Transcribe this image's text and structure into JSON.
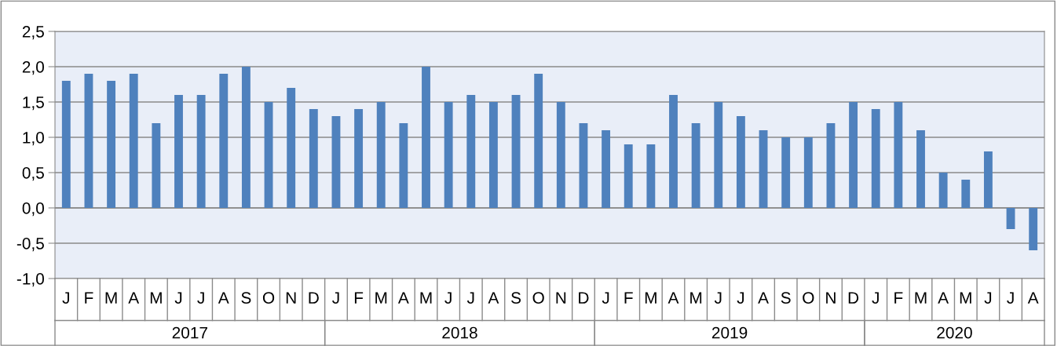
{
  "chart_data": {
    "type": "bar",
    "categories": [
      "J",
      "F",
      "M",
      "A",
      "M",
      "J",
      "J",
      "A",
      "S",
      "O",
      "N",
      "D",
      "J",
      "F",
      "M",
      "A",
      "M",
      "J",
      "J",
      "A",
      "S",
      "O",
      "N",
      "D",
      "J",
      "F",
      "M",
      "A",
      "M",
      "J",
      "J",
      "A",
      "S",
      "O",
      "N",
      "D",
      "J",
      "F",
      "M",
      "A",
      "M",
      "J",
      "J",
      "A"
    ],
    "values": [
      1.8,
      1.9,
      1.8,
      1.9,
      1.2,
      1.6,
      1.6,
      1.9,
      2.0,
      1.5,
      1.7,
      1.4,
      1.3,
      1.4,
      1.5,
      1.2,
      2.0,
      1.5,
      1.6,
      1.5,
      1.6,
      1.9,
      1.5,
      1.2,
      1.1,
      0.9,
      0.9,
      1.6,
      1.2,
      1.5,
      1.3,
      1.1,
      1.0,
      1.0,
      1.2,
      1.5,
      1.4,
      1.5,
      1.1,
      0.5,
      0.4,
      0.8,
      -0.3,
      -0.6
    ],
    "color": "#4f81bd",
    "ylim": [
      -1.0,
      2.5
    ],
    "yticks": [
      {
        "value": -1.0,
        "label": "-1,0"
      },
      {
        "value": -0.5,
        "label": "-0,5"
      },
      {
        "value": 0.0,
        "label": "0,0"
      },
      {
        "value": 0.5,
        "label": "0,5"
      },
      {
        "value": 1.0,
        "label": "1,0"
      },
      {
        "value": 1.5,
        "label": "1,5"
      },
      {
        "value": 2.0,
        "label": "2,0"
      },
      {
        "value": 2.5,
        "label": "2,5"
      }
    ],
    "grid": "y",
    "legend": false,
    "annotations": [
      "2017",
      "2018",
      "2019",
      "2020"
    ]
  }
}
